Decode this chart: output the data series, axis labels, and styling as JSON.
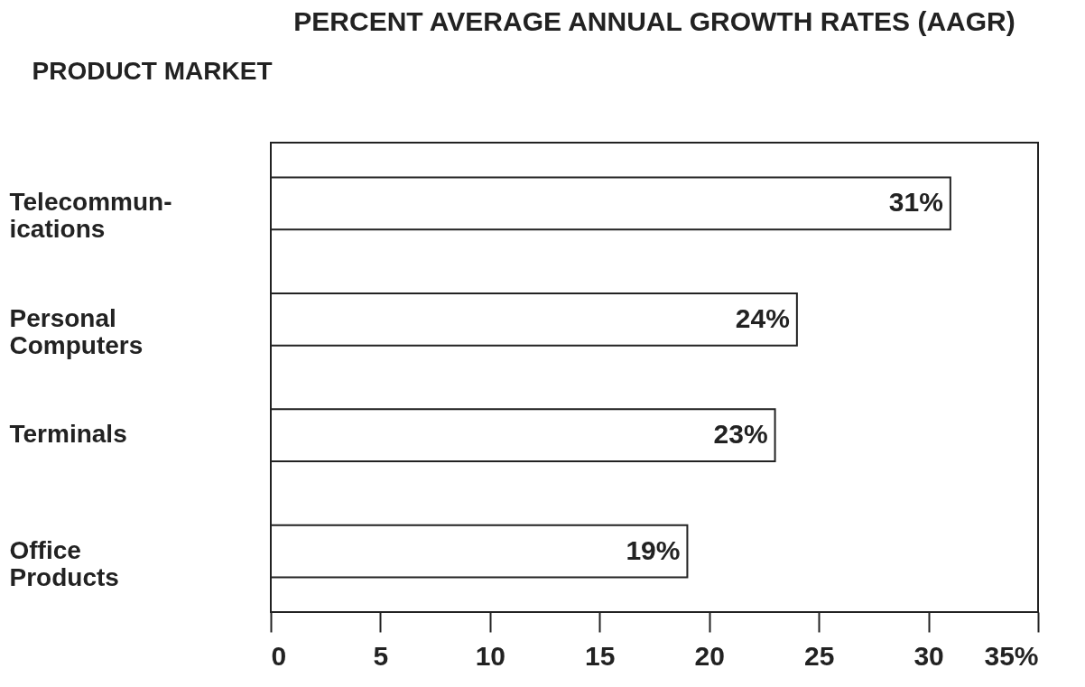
{
  "chart_data": {
    "type": "bar",
    "orientation": "horizontal",
    "title": "PERCENT AVERAGE ANNUAL GROWTH RATES (AAGR)",
    "ylabel": "PRODUCT MARKET",
    "categories": [
      "Telecommun-ications",
      "Personal Computers",
      "Terminals",
      "Office Products"
    ],
    "values": [
      31,
      24,
      23,
      19
    ],
    "value_labels": [
      "31%",
      "24%",
      "23%",
      "19%"
    ],
    "color": "#ffffff",
    "xlim": [
      0,
      35
    ],
    "xticks": [
      0,
      5,
      10,
      15,
      20,
      25,
      30,
      {
        "value": 35,
        "label": "35%"
      }
    ],
    "grid": false
  }
}
